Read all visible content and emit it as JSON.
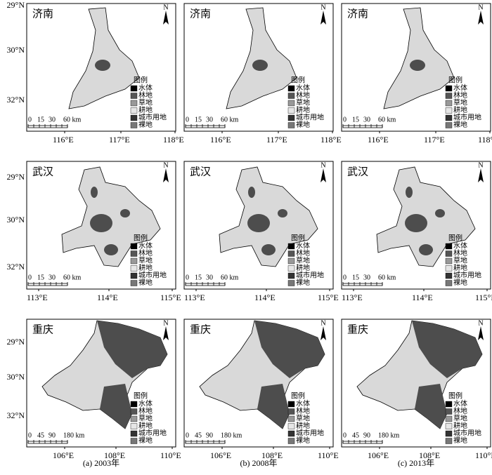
{
  "north": "N",
  "legend": {
    "title": "图例",
    "items": [
      "水体",
      "林地",
      "草地",
      "耕地",
      "城市用地",
      "裸地"
    ]
  },
  "rows": [
    {
      "name": "济南",
      "lat_labels": [
        "29°N",
        "30°N",
        "32°N"
      ],
      "lon_labels": [
        "116°E",
        "117°E",
        "118°E"
      ],
      "scale_labels": [
        "0",
        "15",
        "30",
        "60 km"
      ]
    },
    {
      "name": "武汉",
      "lat_labels": [
        "29°N",
        "30°N",
        "32°N"
      ],
      "lon_labels": [
        "113°E",
        "114°E",
        "115°E"
      ],
      "scale_labels": [
        "0",
        "15",
        "30",
        "60 km"
      ]
    },
    {
      "name": "重庆",
      "lat_labels": [
        "29°N",
        "30°N",
        "32°N"
      ],
      "lon_labels": [
        "106°E",
        "108°E",
        "110°E"
      ],
      "scale_labels": [
        "0",
        "45",
        "90",
        "180 km"
      ]
    }
  ],
  "captions": [
    "(a) 2003年",
    "(b) 2008年",
    "(c) 2013年"
  ]
}
